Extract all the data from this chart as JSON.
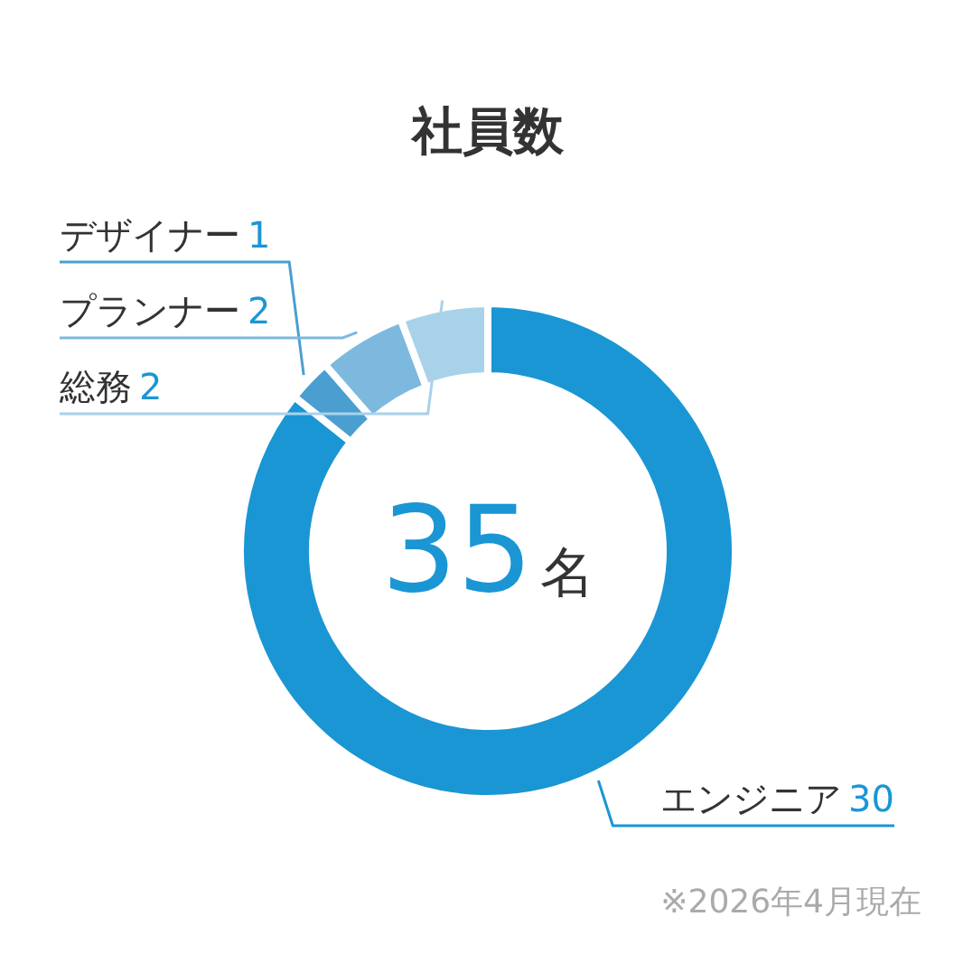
{
  "chart_data": {
    "type": "donut",
    "title": "社員数",
    "categories": [
      "エンジニア",
      "デザイナー",
      "プランナー",
      "総務"
    ],
    "values": [
      30,
      1,
      2,
      2
    ],
    "colors": [
      "#1a96d4",
      "#4a9fd0",
      "#7db9df",
      "#a8d2ea"
    ],
    "data_labels": true,
    "annotations": [
      "35名",
      "※2026年4月現在"
    ]
  }
}
